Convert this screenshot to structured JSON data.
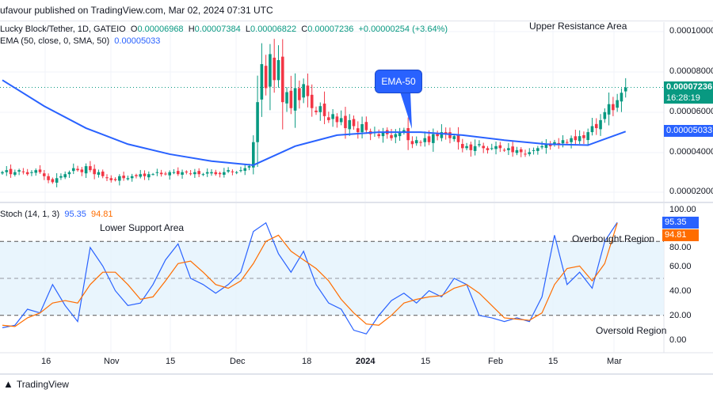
{
  "header": {
    "published": "ufavour published on TradingView.com, Mar 02, 2024 07:31 UTC"
  },
  "legend": {
    "symbol": "Lucky Block/Tether, 1D, GATEIO",
    "o_label": "O",
    "o": "0.00006968",
    "h_label": "H",
    "h": "0.00007384",
    "l_label": "L",
    "l": "0.00006822",
    "c_label": "C",
    "c": "0.00007236",
    "change": "+0.00000254 (+3.64%)",
    "ema_label": "EMA (50, close, 0, SMA, 50)",
    "ema_value": "0.00005033",
    "stoch_label": "Stoch (14, 1, 3)",
    "stoch_k": "95.35",
    "stoch_d": "94.81"
  },
  "annotations": {
    "upper": "Upper Resistance Area",
    "ema_callout": "EMA-50",
    "lower": "Lower Support Area",
    "overbought": "Overbought Region",
    "oversold": "Oversold Region"
  },
  "price_axis": {
    "ticks": [
      "0.00010000",
      "0.00008000",
      "0.00006000",
      "0.00004000",
      "0.00002000"
    ],
    "last_price": "0.00007236",
    "countdown": "16:28:19",
    "ema_tag": "0.00005033"
  },
  "stoch_axis": {
    "ticks": [
      "100.00",
      "80.00",
      "60.00",
      "40.00",
      "20.00",
      "0.00"
    ]
  },
  "time_axis": {
    "labels": [
      "16",
      "Nov",
      "15",
      "Dec",
      "18",
      "2024",
      "15",
      "Feb",
      "15",
      "Mar"
    ]
  },
  "footer": {
    "brand": "TradingView"
  },
  "colors": {
    "up": "#089981",
    "down": "#f23645",
    "ema": "#2962ff",
    "k": "#2962ff",
    "d": "#ff6d00",
    "band": "#e3f2fd"
  },
  "chart_data": [
    {
      "type": "candlestick",
      "title": "Lucky Block/Tether, 1D, GATEIO",
      "x_start": "2023-10-05",
      "x_end": "2024-03-02",
      "interval": "1D",
      "ylim": [
        1.5e-05,
        0.000105
      ],
      "closes": [
        3e-05,
        3.1e-05,
        2.9e-05,
        3e-05,
        3.1e-05,
        3e-05,
        2.9e-05,
        3e-05,
        3.1e-05,
        3e-05,
        2.8e-05,
        2.6e-05,
        2.5e-05,
        2.7e-05,
        2.8e-05,
        2.9e-05,
        3e-05,
        3.2e-05,
        3.1e-05,
        3e-05,
        3.3e-05,
        3.1e-05,
        2.9e-05,
        3e-05,
        2.8e-05,
        2.7e-05,
        2.6e-05,
        2.6e-05,
        2.8e-05,
        2.7e-05,
        2.7e-05,
        2.8e-05,
        2.8e-05,
        2.9e-05,
        2.8e-05,
        2.9e-05,
        2.9e-05,
        3e-05,
        2.9e-05,
        2.9e-05,
        3e-05,
        3e-05,
        2.9e-05,
        3e-05,
        3e-05,
        2.9e-05,
        3e-05,
        2.9e-05,
        2.9e-05,
        3e-05,
        3e-05,
        2.9e-05,
        2.9e-05,
        3e-05,
        3.1e-05,
        3e-05,
        3e-05,
        3.1e-05,
        3.2e-05,
        3.3e-05,
        4.5e-05,
        6.5e-05,
        8.4e-05,
        7.2e-05,
        8.9e-05,
        7.6e-05,
        8.6e-05,
        6.5e-05,
        7e-05,
        6.2e-05,
        7.2e-05,
        6.6e-05,
        7.4e-05,
        6.8e-05,
        6.2e-05,
        6e-05,
        6.3e-05,
        5.8e-05,
        5.6e-05,
        5.9e-05,
        5.5e-05,
        5.7e-05,
        5.2e-05,
        5.6e-05,
        5.3e-05,
        5e-05,
        5.4e-05,
        5.1e-05,
        4.9e-05,
        5e-05,
        4.8e-05,
        5e-05,
        4.9e-05,
        4.7e-05,
        4.9e-05,
        5e-05,
        5.1e-05,
        4.6e-05,
        4.4e-05,
        4.6e-05,
        4.5e-05,
        4.7e-05,
        4.5e-05,
        4.9e-05,
        4.8e-05,
        5e-05,
        4.9e-05,
        4.7e-05,
        4.8e-05,
        4.5e-05,
        4.2e-05,
        4.3e-05,
        4.1e-05,
        4.3e-05,
        4.4e-05,
        4.2e-05,
        4.1e-05,
        4.2e-05,
        4.3e-05,
        4.2e-05,
        4.1e-05,
        4.2e-05,
        4e-05,
        4.1e-05,
        4e-05,
        3.9e-05,
        4e-05,
        4.1e-05,
        4.2e-05,
        4.3e-05,
        4.4e-05,
        4.3e-05,
        4.5e-05,
        4.4e-05,
        4.6e-05,
        4.5e-05,
        4.7e-05,
        4.6e-05,
        4.8e-05,
        4.7e-05,
        5e-05,
        5.3e-05,
        5.2e-05,
        5.6e-05,
        6e-05,
        6.4e-05,
        6.1e-05,
        6.6e-05,
        6.968e-05,
        7.236e-05
      ],
      "ema50": {
        "day_index": [
          0,
          10,
          20,
          30,
          40,
          50,
          60,
          70,
          80,
          90,
          100,
          110,
          120,
          130,
          140,
          149
        ],
        "values": [
          7.6e-05,
          6.3e-05,
          5.2e-05,
          4.4e-05,
          3.9e-05,
          3.55e-05,
          3.35e-05,
          4.3e-05,
          4.85e-05,
          5e-05,
          5e-05,
          4.85e-05,
          4.6e-05,
          4.4e-05,
          4.35e-05,
          5.033e-05
        ]
      }
    },
    {
      "type": "line",
      "title": "Stoch (14, 1, 3)",
      "ylim": [
        0,
        100
      ],
      "levels": [
        80,
        50,
        20
      ],
      "step_days": 3,
      "series": [
        {
          "name": "%K",
          "values": [
            10,
            12,
            25,
            22,
            45,
            28,
            15,
            75,
            60,
            40,
            28,
            30,
            45,
            65,
            78,
            50,
            45,
            38,
            45,
            55,
            88,
            95,
            70,
            55,
            72,
            45,
            30,
            25,
            8,
            5,
            20,
            32,
            38,
            30,
            40,
            35,
            50,
            45,
            20,
            18,
            15,
            18,
            15,
            35,
            85,
            45,
            55,
            42,
            80,
            95.35
          ]
        },
        {
          "name": "%D",
          "values": [
            12,
            11,
            18,
            22,
            30,
            32,
            30,
            45,
            55,
            55,
            45,
            33,
            35,
            48,
            62,
            64,
            55,
            45,
            42,
            48,
            62,
            80,
            85,
            72,
            65,
            58,
            48,
            33,
            22,
            13,
            12,
            20,
            30,
            33,
            35,
            36,
            42,
            45,
            38,
            28,
            18,
            17,
            16,
            22,
            45,
            58,
            60,
            48,
            62,
            94.81
          ]
        }
      ]
    }
  ]
}
